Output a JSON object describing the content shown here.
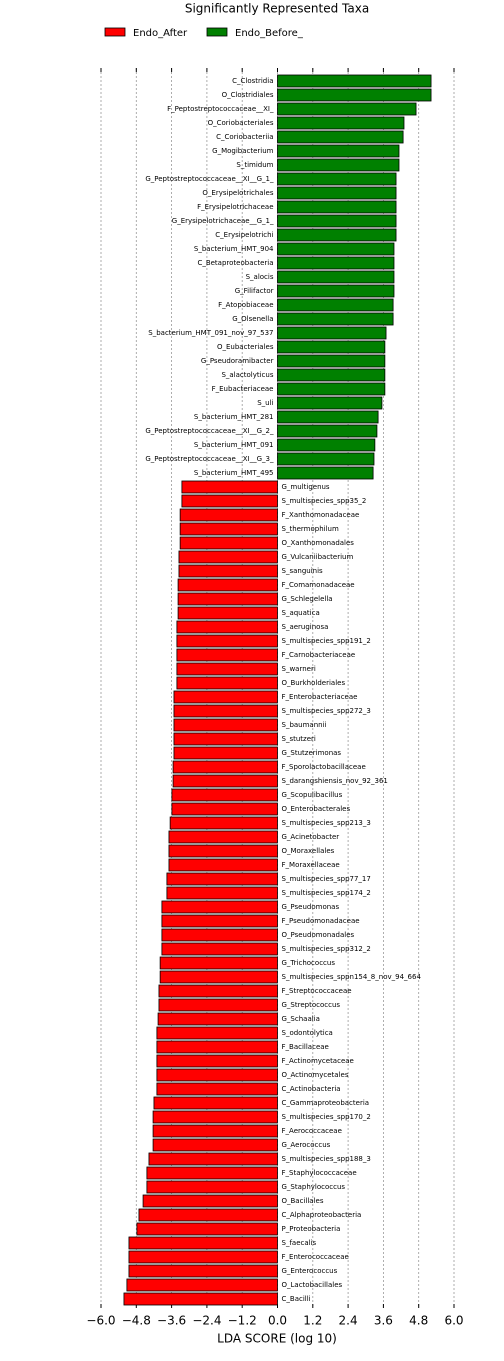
{
  "chart_data": {
    "type": "bar",
    "orientation": "horizontal",
    "title": "Significantly Represented Taxa",
    "xlabel": "LDA SCORE (log 10)",
    "categories": [
      "C_Clostridia",
      "O_Clostridiales",
      "F_Peptostreptococcaceae__XI_",
      "O_Coriobacteriales",
      "C_Coriobacteriia",
      "G_Mogibacterium",
      "S_timidum",
      "G_Peptostreptococcaceae__XI__G_1_",
      "O_Erysipelotrichales",
      "F_Erysipelotrichaceae",
      "G_Erysipelotrichaceae__G_1_",
      "C_Erysipelotrichi",
      "S_bacterium_HMT_904",
      "C_Betaproteobacteria",
      "S_alocis",
      "G_Filifactor",
      "F_Atopobiaceae",
      "G_Olsenella",
      "S_bacterium_HMT_091_nov_97_537",
      "O_Eubacteriales",
      "G_Pseudoramibacter",
      "S_alactolyticus",
      "F_Eubacteriaceae",
      "S_uli",
      "S_bacterium_HMT_281",
      "G_Peptostreptococcaceae__XI__G_2_",
      "S_bacterium_HMT_091",
      "G_Peptostreptococcaceae__XI__G_3_",
      "S_bacterium_HMT_495",
      "G_multigenus",
      "S_multispecies_spp35_2",
      "F_Xanthomonadaceae",
      "S_thermophilum",
      "O_Xanthomonadales",
      "G_Vulcaniibacterium",
      "S_sanguinis",
      "F_Comamonadaceae",
      "G_Schlegelella",
      "S_aquatica",
      "S_aeruginosa",
      "S_multispecies_spp191_2",
      "F_Carnobacteriaceae",
      "S_warneri",
      "O_Burkholderiales",
      "F_Enterobacteriaceae",
      "S_multispecies_spp272_3",
      "S_baumannii",
      "S_stutzeri",
      "G_Stutzerimonas",
      "F_Sporolactobacillaceae",
      "S_darangshiensis_nov_92_361",
      "G_Scopulibacillus",
      "O_Enterobacterales",
      "S_multispecies_spp213_3",
      "G_Acinetobacter",
      "O_Moraxellales",
      "F_Moraxellaceae",
      "S_multispecies_spp77_17",
      "S_multispecies_spp174_2",
      "G_Pseudomonas",
      "F_Pseudomonadaceae",
      "O_Pseudomonadales",
      "S_multispecies_spp312_2",
      "G_Trichococcus",
      "S_multispecies_sppn154_8_nov_94_664",
      "F_Streptococcaceae",
      "G_Streptococcus",
      "G_Schaalia",
      "S_odontolytica",
      "F_Bacillaceae",
      "F_Actinomycetaceae",
      "O_Actinomycetales",
      "C_Actinobacteria",
      "C_Gammaproteobacteria",
      "S_multispecies_spp170_2",
      "F_Aerococcaceae",
      "G_Aerococcus",
      "S_multispecies_spp188_3",
      "F_Staphylococcaceae",
      "G_Staphylococcus",
      "O_Bacillales",
      "C_Alphaproteobacteria",
      "P_Proteobacteria",
      "S_faecalis",
      "F_Enterococcaceae",
      "G_Enterococcus",
      "O_Lactobacillales",
      "C_Bacilli"
    ],
    "series": [
      {
        "name": "Endo_After",
        "color": "#ff0000",
        "values": [
          null,
          null,
          null,
          null,
          null,
          null,
          null,
          null,
          null,
          null,
          null,
          null,
          null,
          null,
          null,
          null,
          null,
          null,
          null,
          null,
          null,
          null,
          null,
          null,
          null,
          null,
          null,
          null,
          null,
          -3.25,
          -3.25,
          -3.31,
          -3.31,
          -3.31,
          -3.35,
          -3.35,
          -3.38,
          -3.38,
          -3.38,
          -3.42,
          -3.42,
          -3.42,
          -3.42,
          -3.42,
          -3.52,
          -3.52,
          -3.52,
          -3.52,
          -3.52,
          -3.55,
          -3.55,
          -3.59,
          -3.59,
          -3.65,
          -3.69,
          -3.69,
          -3.69,
          -3.76,
          -3.76,
          -3.93,
          -3.93,
          -3.93,
          -3.93,
          -3.99,
          -3.99,
          -4.03,
          -4.03,
          -4.06,
          -4.1,
          -4.1,
          -4.1,
          -4.1,
          -4.1,
          -4.2,
          -4.23,
          -4.23,
          -4.23,
          -4.37,
          -4.44,
          -4.44,
          -4.57,
          -4.71,
          -4.78,
          -5.05,
          -5.05,
          -5.05,
          -5.12,
          -5.22
        ]
      },
      {
        "name": "Endo_Before_",
        "color": "#008000",
        "values": [
          5.22,
          5.22,
          4.71,
          4.3,
          4.27,
          4.13,
          4.13,
          4.03,
          4.03,
          4.03,
          4.03,
          4.03,
          3.96,
          3.96,
          3.96,
          3.96,
          3.93,
          3.93,
          3.69,
          3.65,
          3.65,
          3.65,
          3.65,
          3.55,
          3.42,
          3.38,
          3.31,
          3.28,
          3.25,
          null,
          null,
          null,
          null,
          null,
          null,
          null,
          null,
          null,
          null,
          null,
          null,
          null,
          null,
          null,
          null,
          null,
          null,
          null,
          null,
          null,
          null,
          null,
          null,
          null,
          null,
          null,
          null,
          null,
          null,
          null,
          null,
          null,
          null,
          null,
          null,
          null,
          null,
          null,
          null,
          null,
          null,
          null,
          null,
          null,
          null,
          null,
          null,
          null,
          null,
          null,
          null,
          null,
          null,
          null,
          null,
          null,
          null,
          null
        ]
      }
    ],
    "xlim": [
      -6.0,
      6.0
    ],
    "xticks": [
      {
        "value": -6.0,
        "label": "−6.0"
      },
      {
        "value": -4.8,
        "label": "−4.8"
      },
      {
        "value": -3.6,
        "label": "−3.6"
      },
      {
        "value": -2.4,
        "label": "−2.4"
      },
      {
        "value": -1.2,
        "label": "−1.2"
      },
      {
        "value": 0,
        "label": "0.0"
      },
      {
        "value": 1.2,
        "label": "1.2"
      },
      {
        "value": 2.4,
        "label": "2.4"
      },
      {
        "value": 3.6,
        "label": "3.6"
      },
      {
        "value": 4.8,
        "label": "4.8"
      },
      {
        "value": 6.0,
        "label": "6.0"
      }
    ],
    "grid": true,
    "legend": "top"
  }
}
